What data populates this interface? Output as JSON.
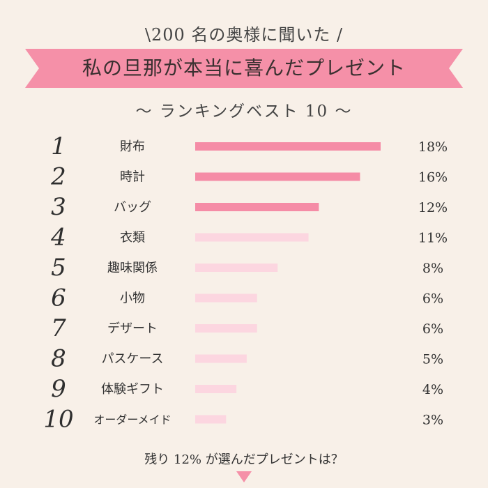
{
  "header": {
    "intro": "\\200 名の奥様に聞いた /",
    "title": "私の旦那が本当に喜んだプレゼント",
    "subtitle": "～ ランキングベスト 10 ～"
  },
  "footer": {
    "text": "残り 12% が選んだプレゼントは？"
  },
  "colors": {
    "background": "#f8f0e8",
    "ribbon": "#f590a8",
    "ribbon_shadow": "#e66f8c",
    "bar_top3": "#f58ca6",
    "bar_rest": "#fcd6e0",
    "arrow": "#f590a8"
  },
  "chart_data": {
    "type": "bar",
    "orientation": "horizontal",
    "ranks": [
      "1",
      "2",
      "3",
      "4",
      "5",
      "6",
      "7",
      "8",
      "9",
      "10"
    ],
    "categories": [
      "財布",
      "時計",
      "バッグ",
      "衣類",
      "趣味関係",
      "小物",
      "デザート",
      "パスケース",
      "体験ギフト",
      "オーダーメイド"
    ],
    "values": [
      18,
      16,
      12,
      11,
      8,
      6,
      6,
      5,
      4,
      3
    ],
    "value_labels": [
      "18%",
      "16%",
      "12%",
      "11%",
      "8%",
      "6%",
      "6%",
      "5%",
      "4%",
      "3%"
    ],
    "unit": "%",
    "xlim": [
      0,
      18
    ],
    "highlight_top": 3,
    "grid": false,
    "legend": "none"
  }
}
